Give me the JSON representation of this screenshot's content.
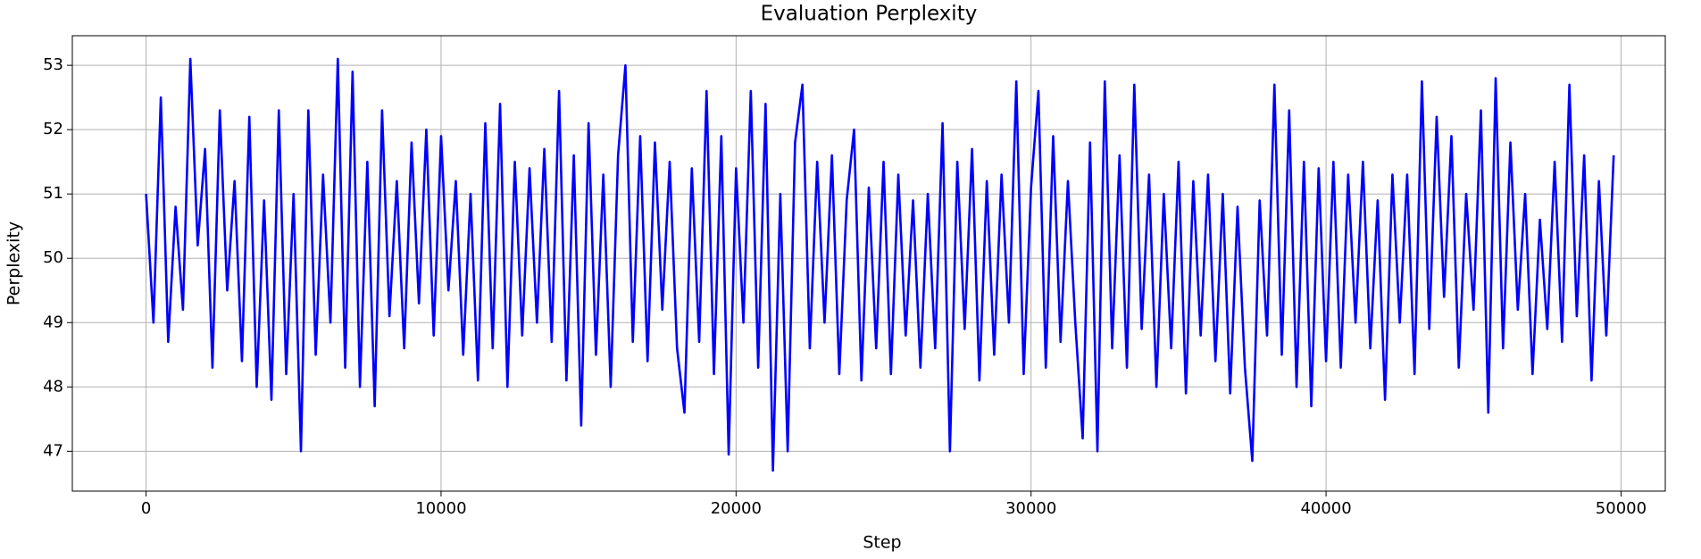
{
  "chart_data": {
    "type": "line",
    "title": "Evaluation Perplexity",
    "x_label": "Step",
    "y_label": "Perplexity",
    "color": "#0000ff",
    "grid": true,
    "xlim": [
      -2500,
      51500
    ],
    "ylim": [
      46.38,
      53.46
    ],
    "xticks": [
      0,
      10000,
      20000,
      30000,
      40000,
      50000
    ],
    "yticks": [
      47,
      48,
      49,
      50,
      51,
      52,
      53
    ],
    "x": [
      0,
      250,
      500,
      750,
      1000,
      1250,
      1500,
      1750,
      2000,
      2250,
      2500,
      2750,
      3000,
      3250,
      3500,
      3750,
      4000,
      4250,
      4500,
      4750,
      5000,
      5250,
      5500,
      5750,
      6000,
      6250,
      6500,
      6750,
      7000,
      7250,
      7500,
      7750,
      8000,
      8250,
      8500,
      8750,
      9000,
      9250,
      9500,
      9750,
      10000,
      10250,
      10500,
      10750,
      11000,
      11250,
      11500,
      11750,
      12000,
      12250,
      12500,
      12750,
      13000,
      13250,
      13500,
      13750,
      14000,
      14250,
      14500,
      14750,
      15000,
      15250,
      15500,
      15750,
      16000,
      16250,
      16500,
      16750,
      17000,
      17250,
      17500,
      17750,
      18000,
      18250,
      18500,
      18750,
      19000,
      19250,
      19500,
      19750,
      20000,
      20250,
      20500,
      20750,
      21000,
      21250,
      21500,
      21750,
      22000,
      22250,
      22500,
      22750,
      23000,
      23250,
      23500,
      23750,
      24000,
      24250,
      24500,
      24750,
      25000,
      25250,
      25500,
      25750,
      26000,
      26250,
      26500,
      26750,
      27000,
      27250,
      27500,
      27750,
      28000,
      28250,
      28500,
      28750,
      29000,
      29250,
      29500,
      29750,
      30000,
      30250,
      30500,
      30750,
      31000,
      31250,
      31500,
      31750,
      32000,
      32250,
      32500,
      32750,
      33000,
      33250,
      33500,
      33750,
      34000,
      34250,
      34500,
      34750,
      35000,
      35250,
      35500,
      35750,
      36000,
      36250,
      36500,
      36750,
      37000,
      37250,
      37500,
      37750,
      38000,
      38250,
      38500,
      38750,
      39000,
      39250,
      39500,
      39750,
      40000,
      40250,
      40500,
      40750,
      41000,
      41250,
      41500,
      41750,
      42000,
      42250,
      42500,
      42750,
      43000,
      43250,
      43500,
      43750,
      44000,
      44250,
      44500,
      44750,
      45000,
      45250,
      45500,
      45750,
      46000,
      46250,
      46500,
      46750,
      47000,
      47250,
      47500,
      47750,
      48000,
      48250,
      48500,
      48750,
      49000,
      49250,
      49500,
      49750
    ],
    "values": [
      51.0,
      49.0,
      52.5,
      48.7,
      50.8,
      49.2,
      53.1,
      50.2,
      51.7,
      48.3,
      52.3,
      49.5,
      51.2,
      48.4,
      52.2,
      48.0,
      50.9,
      47.8,
      52.3,
      48.2,
      51.0,
      47.0,
      52.3,
      48.5,
      51.3,
      49.0,
      53.1,
      48.3,
      52.9,
      48.0,
      51.5,
      47.7,
      52.3,
      49.1,
      51.2,
      48.6,
      51.8,
      49.3,
      52.0,
      48.8,
      51.9,
      49.5,
      51.2,
      48.5,
      51.0,
      48.1,
      52.1,
      48.6,
      52.4,
      48.0,
      51.5,
      48.8,
      51.4,
      49.0,
      51.7,
      48.7,
      52.6,
      48.1,
      51.6,
      47.4,
      52.1,
      48.5,
      51.3,
      48.0,
      51.6,
      53.0,
      48.7,
      51.9,
      48.4,
      51.8,
      49.2,
      51.5,
      48.6,
      47.6,
      51.4,
      48.7,
      52.6,
      48.2,
      51.9,
      46.95,
      51.4,
      49.0,
      52.6,
      48.3,
      52.4,
      46.7,
      51.0,
      47.0,
      51.8,
      52.7,
      48.6,
      51.5,
      49.0,
      51.6,
      48.2,
      50.9,
      52.0,
      48.1,
      51.1,
      48.6,
      51.5,
      48.2,
      51.3,
      48.8,
      50.9,
      48.3,
      51.0,
      48.6,
      52.1,
      47.0,
      51.5,
      48.9,
      51.7,
      48.1,
      51.2,
      48.5,
      51.3,
      49.0,
      52.75,
      48.2,
      51.1,
      52.6,
      48.3,
      51.9,
      48.7,
      51.2,
      49.0,
      47.2,
      51.8,
      47.0,
      52.75,
      48.6,
      51.6,
      48.3,
      52.7,
      48.9,
      51.3,
      48.0,
      51.0,
      48.6,
      51.5,
      47.9,
      51.2,
      48.8,
      51.3,
      48.4,
      51.0,
      47.9,
      50.8,
      48.3,
      46.85,
      50.9,
      48.8,
      52.7,
      48.5,
      52.3,
      48.0,
      51.5,
      47.7,
      51.4,
      48.4,
      51.5,
      48.3,
      51.3,
      49.0,
      51.5,
      48.6,
      50.9,
      47.8,
      51.3,
      49.0,
      51.3,
      48.2,
      52.75,
      48.9,
      52.2,
      49.4,
      51.9,
      48.3,
      51.0,
      49.2,
      52.3,
      47.6,
      52.8,
      48.6,
      51.8,
      49.2,
      51.0,
      48.2,
      50.6,
      48.9,
      51.5,
      48.7,
      52.7,
      49.1,
      51.6,
      48.1,
      51.2,
      48.8,
      51.6
    ]
  }
}
